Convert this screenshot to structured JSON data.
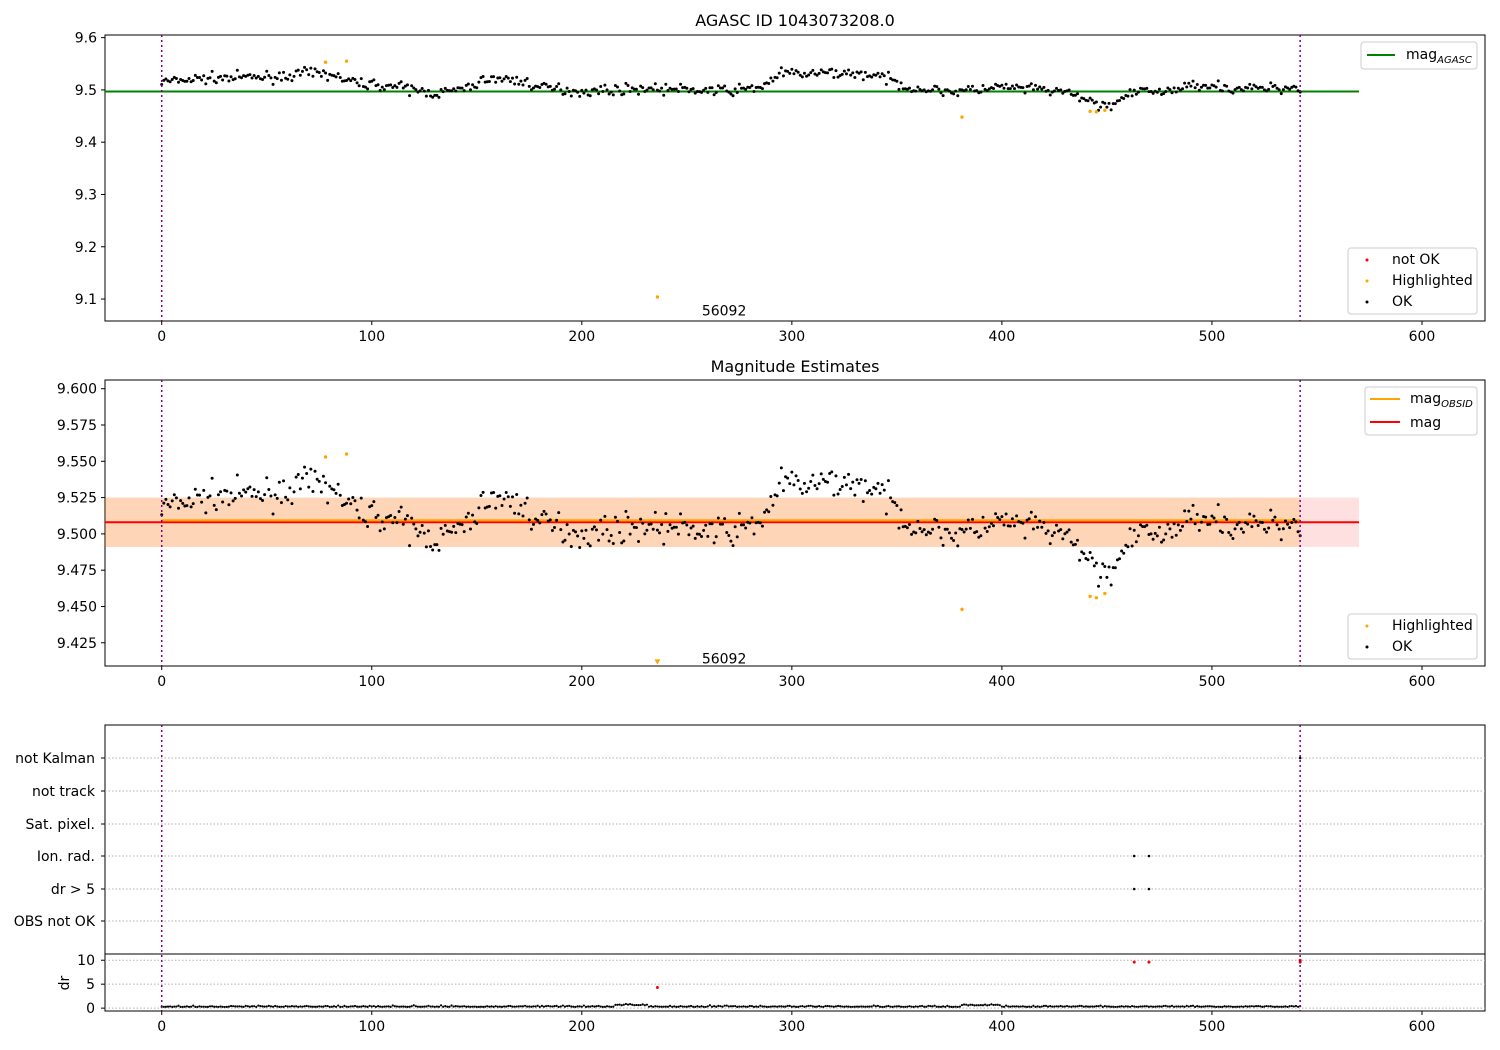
{
  "chart_data": [
    {
      "type": "scatter",
      "title": "AGASC ID 1043073208.0",
      "xlim": [
        -27,
        630
      ],
      "ylim": [
        9.058,
        9.605
      ],
      "xticks": [
        "0",
        "100",
        "200",
        "300",
        "400",
        "500",
        "600"
      ],
      "xtick_values": [
        0,
        100,
        200,
        300,
        400,
        500,
        600
      ],
      "yticks": [
        "9.1",
        "9.2",
        "9.3",
        "9.4",
        "9.5",
        "9.6"
      ],
      "ytick_values": [
        9.1,
        9.2,
        9.3,
        9.4,
        9.5,
        9.6
      ],
      "vlines": [
        0,
        542
      ],
      "hline": {
        "y": 9.497,
        "x_end": 570,
        "label": "mag",
        "label_sub": "AGASC",
        "color": "#008000"
      },
      "annotation": {
        "text": "56092",
        "x": 260,
        "y": 9.078
      },
      "legend_lines": [
        {
          "label": "mag",
          "sub": "AGASC",
          "color": "#008000"
        }
      ],
      "legend_markers": [
        {
          "label": "not OK",
          "color": "#ff0000"
        },
        {
          "label": "Highlighted",
          "color": "#ffa500"
        },
        {
          "label": "OK",
          "color": "#000000"
        }
      ],
      "highlighted": [
        [
          78,
          9.553
        ],
        [
          88,
          9.555
        ],
        [
          236,
          9.104
        ],
        [
          381,
          9.448
        ],
        [
          442,
          9.459
        ],
        [
          445,
          9.458
        ],
        [
          449,
          9.461
        ]
      ]
    },
    {
      "type": "scatter",
      "title": "Magnitude Estimates",
      "xlim": [
        -27,
        630
      ],
      "ylim": [
        9.409,
        9.606
      ],
      "xticks": [
        "0",
        "100",
        "200",
        "300",
        "400",
        "500",
        "600"
      ],
      "xtick_values": [
        0,
        100,
        200,
        300,
        400,
        500,
        600
      ],
      "yticks": [
        "9.425",
        "9.450",
        "9.475",
        "9.500",
        "9.525",
        "9.550",
        "9.575",
        "9.600"
      ],
      "ytick_values": [
        9.425,
        9.45,
        9.475,
        9.5,
        9.525,
        9.55,
        9.575,
        9.6
      ],
      "vlines": [
        0,
        542
      ],
      "mag_line": {
        "y": 9.508,
        "x_end": 570,
        "color": "#ff0000"
      },
      "mag_obsid_line": {
        "y": 9.508,
        "x_end": 542,
        "color": "#ffa500"
      },
      "bands": [
        {
          "x_end": 570,
          "y0": 9.491,
          "y1": 9.525,
          "color": "#ff0000",
          "opacity": 0.12
        },
        {
          "x_end": 542,
          "y0": 9.491,
          "y1": 9.525,
          "color": "#ffa500",
          "opacity": 0.18
        }
      ],
      "annotation": {
        "text": "56092",
        "x": 260,
        "y": 9.414
      },
      "legend_lines": [
        {
          "label": "mag",
          "sub": "OBSID",
          "color": "#ffa500"
        },
        {
          "label": "mag",
          "sub": "",
          "color": "#ff0000"
        }
      ],
      "legend_markers": [
        {
          "label": "Highlighted",
          "color": "#ffa500"
        },
        {
          "label": "OK",
          "color": "#000000"
        }
      ],
      "highlighted": [
        [
          78,
          9.553
        ],
        [
          88,
          9.555
        ],
        [
          381,
          9.448
        ],
        [
          442,
          9.457
        ],
        [
          445,
          9.456
        ],
        [
          449,
          9.459
        ]
      ],
      "offscale_marker": {
        "x": 236,
        "y": 9.4115,
        "color": "#ffa500"
      }
    },
    {
      "type": "scatter",
      "xlim": [
        -27,
        630
      ],
      "flag_labels": [
        "not Kalman",
        "not track",
        "Sat. pixel.",
        "Ion. rad.",
        "dr > 5",
        "OBS not OK"
      ],
      "flag_points": [
        {
          "flag": "Ion. rad.",
          "x": [
            463,
            470
          ]
        },
        {
          "flag": "dr > 5",
          "x": [
            463,
            470
          ]
        },
        {
          "flag": "not Kalman",
          "x": [
            542
          ]
        }
      ],
      "vlines": [
        0,
        542
      ]
    },
    {
      "type": "scatter",
      "ylabel": "dr",
      "xlim": [
        -27,
        630
      ],
      "ylim": [
        -0.6,
        11.3
      ],
      "xticks": [
        "0",
        "100",
        "200",
        "300",
        "400",
        "500",
        "600"
      ],
      "xtick_values": [
        0,
        100,
        200,
        300,
        400,
        500,
        600
      ],
      "yticks": [
        "0",
        "5",
        "10"
      ],
      "ytick_values": [
        0,
        5,
        10
      ],
      "vlines": [
        0,
        542
      ],
      "red_points": [
        [
          236,
          4.3
        ],
        [
          463,
          9.6
        ],
        [
          470,
          9.6
        ],
        [
          542,
          9.6
        ],
        [
          542,
          10.0
        ]
      ]
    }
  ]
}
